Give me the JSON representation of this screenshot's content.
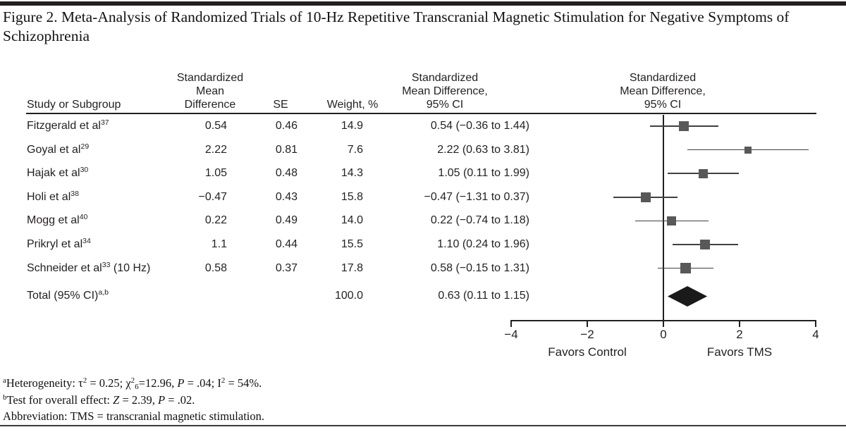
{
  "figure": {
    "title": "Figure 2. Meta-Analysis of Randomized Trials of 10-Hz Repetitive Transcranial Magnetic Stimulation for Negative Symptoms of Schizophrenia"
  },
  "table": {
    "headers": {
      "study": "Study or Subgroup",
      "smd": "Standardized\nMean\nDifference",
      "se": "SE",
      "weight": "Weight, %",
      "ci": "Standardized\nMean Difference,\n95% CI",
      "plot": "Standardized\nMean Difference,\n95% CI"
    },
    "rows": [
      {
        "study": "Fitzgerald et al",
        "ref": "37",
        "suffix": "",
        "smd": "0.54",
        "se": "0.46",
        "weight": "14.9",
        "ci": "0.54 (−0.36 to 1.44)"
      },
      {
        "study": "Goyal et al",
        "ref": "29",
        "suffix": "",
        "smd": "2.22",
        "se": "0.81",
        "weight": "7.6",
        "ci": "2.22 (0.63 to 3.81)"
      },
      {
        "study": "Hajak et al",
        "ref": "30",
        "suffix": "",
        "smd": "1.05",
        "se": "0.48",
        "weight": "14.3",
        "ci": "1.05 (0.11 to 1.99)"
      },
      {
        "study": "Holi et al",
        "ref": "38",
        "suffix": "",
        "smd": "−0.47",
        "se": "0.43",
        "weight": "15.8",
        "ci": "−0.47 (−1.31 to 0.37)"
      },
      {
        "study": "Mogg et al",
        "ref": "40",
        "suffix": "",
        "smd": "0.22",
        "se": "0.49",
        "weight": "14.0",
        "ci": "0.22 (−0.74 to 1.18)"
      },
      {
        "study": "Prikryl et al",
        "ref": "34",
        "suffix": "",
        "smd": "1.1",
        "se": "0.44",
        "weight": "15.5",
        "ci": "1.10 (0.24 to 1.96)"
      },
      {
        "study": "Schneider et al",
        "ref": "33",
        "suffix": " (10 Hz)",
        "smd": "0.58",
        "se": "0.37",
        "weight": "17.8",
        "ci": "0.58 (−0.15 to 1.31)"
      }
    ],
    "total": {
      "label": "Total (95% CI)",
      "ref": "a,b",
      "smd": "",
      "se": "",
      "weight": "100.0",
      "ci": "0.63 (0.11 to 1.15)"
    }
  },
  "chart_data": {
    "type": "forest",
    "title": "Meta-Analysis of Randomized Trials of 10-Hz Repetitive Transcranial Magnetic Stimulation for Negative Symptoms of Schizophrenia",
    "xlim": [
      -4,
      4
    ],
    "x_ticks": [
      "−4",
      "−2",
      "0",
      "2",
      "4"
    ],
    "x_tick_values": [
      -4,
      -2,
      0,
      2,
      4
    ],
    "x_annotation_left": "Favors Control",
    "x_annotation_right": "Favors TMS",
    "studies": [
      {
        "label": "Fitzgerald et al 37",
        "smd": 0.54,
        "se": 0.46,
        "weight_pct": 14.9,
        "ci_low": -0.36,
        "ci_high": 1.44
      },
      {
        "label": "Goyal et al 29",
        "smd": 2.22,
        "se": 0.81,
        "weight_pct": 7.6,
        "ci_low": 0.63,
        "ci_high": 3.81
      },
      {
        "label": "Hajak et al 30",
        "smd": 1.05,
        "se": 0.48,
        "weight_pct": 14.3,
        "ci_low": 0.11,
        "ci_high": 1.99
      },
      {
        "label": "Holi et al 38",
        "smd": -0.47,
        "se": 0.43,
        "weight_pct": 15.8,
        "ci_low": -1.31,
        "ci_high": 0.37
      },
      {
        "label": "Mogg et al 40",
        "smd": 0.22,
        "se": 0.49,
        "weight_pct": 14.0,
        "ci_low": -0.74,
        "ci_high": 1.18
      },
      {
        "label": "Prikryl et al 34",
        "smd": 1.1,
        "se": 0.44,
        "weight_pct": 15.5,
        "ci_low": 0.24,
        "ci_high": 1.96
      },
      {
        "label": "Schneider et al 33 (10 Hz)",
        "smd": 0.58,
        "se": 0.37,
        "weight_pct": 17.8,
        "ci_low": -0.15,
        "ci_high": 1.31
      }
    ],
    "total": {
      "label": "Total (95% CI) a,b",
      "smd": 0.63,
      "ci_low": 0.11,
      "ci_high": 1.15,
      "weight_pct": 100.0
    }
  },
  "footnotes": {
    "a": {
      "marker": "a",
      "segments": [
        {
          "t": "Heterogeneity: "
        },
        {
          "t": "τ",
          "sup": "2"
        },
        {
          "t": " = 0.25; "
        },
        {
          "t": "χ",
          "sup": "2",
          "sub": "6"
        },
        {
          "t": "=12.96, "
        },
        {
          "t": "P",
          "i": true
        },
        {
          "t": " = .04; "
        },
        {
          "t": "I",
          "sup": "2"
        },
        {
          "t": " = 54%."
        }
      ]
    },
    "b": {
      "marker": "b",
      "segments": [
        {
          "t": "Test for overall effect: "
        },
        {
          "t": "Z",
          "i": true
        },
        {
          "t": " = 2.39, "
        },
        {
          "t": "P",
          "i": true
        },
        {
          "t": " = .02."
        }
      ]
    },
    "abbreviation": "Abbreviation: TMS = transcranial magnetic stimulation."
  },
  "colors": {
    "square": "#58585a",
    "diamond": "#1a1a1a",
    "ci_line": "#404040",
    "axis": "#231f20"
  }
}
